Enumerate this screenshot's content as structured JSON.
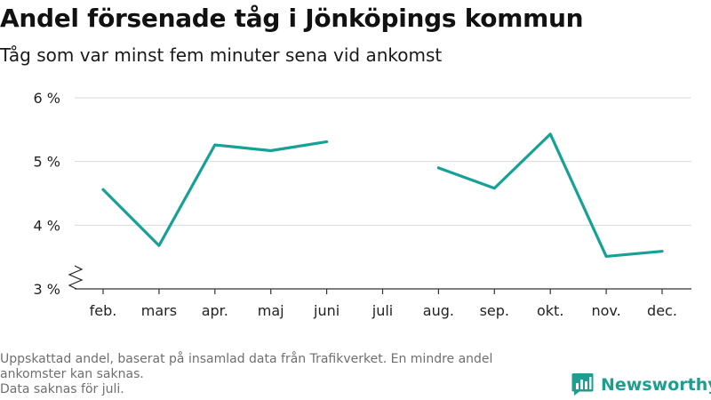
{
  "header": {
    "title": "Andel försenade tåg i Jönköpings kommun",
    "subtitle": "Tåg som var minst fem minuter sena vid ankomst"
  },
  "chart_data": {
    "type": "line",
    "categories": [
      "feb.",
      "mars",
      "apr.",
      "maj",
      "juni",
      "juli",
      "aug.",
      "sep.",
      "okt.",
      "nov.",
      "dec."
    ],
    "series": [
      {
        "values": [
          4.56,
          3.68,
          5.26,
          5.17,
          5.31,
          null,
          4.9,
          4.58,
          5.43,
          3.51,
          3.59
        ]
      }
    ],
    "yticks": [
      3,
      4,
      5,
      6
    ],
    "ytick_labels": [
      "3 %",
      "4 %",
      "5 %",
      "6 %"
    ],
    "ylim": [
      3,
      6
    ],
    "y_axis_break": true,
    "grid": "horizontal",
    "line_color": "#16a196"
  },
  "footnote": {
    "line1": "Uppskattad andel, baserat på insamlad data från Trafikverket. En mindre andel",
    "line2": "ankomster kan saknas.",
    "line3": "Data saknas för juli."
  },
  "brand": {
    "name": "Newsworthy",
    "icon": "newsworthy-logo-icon",
    "color": "#1f9e8f"
  }
}
